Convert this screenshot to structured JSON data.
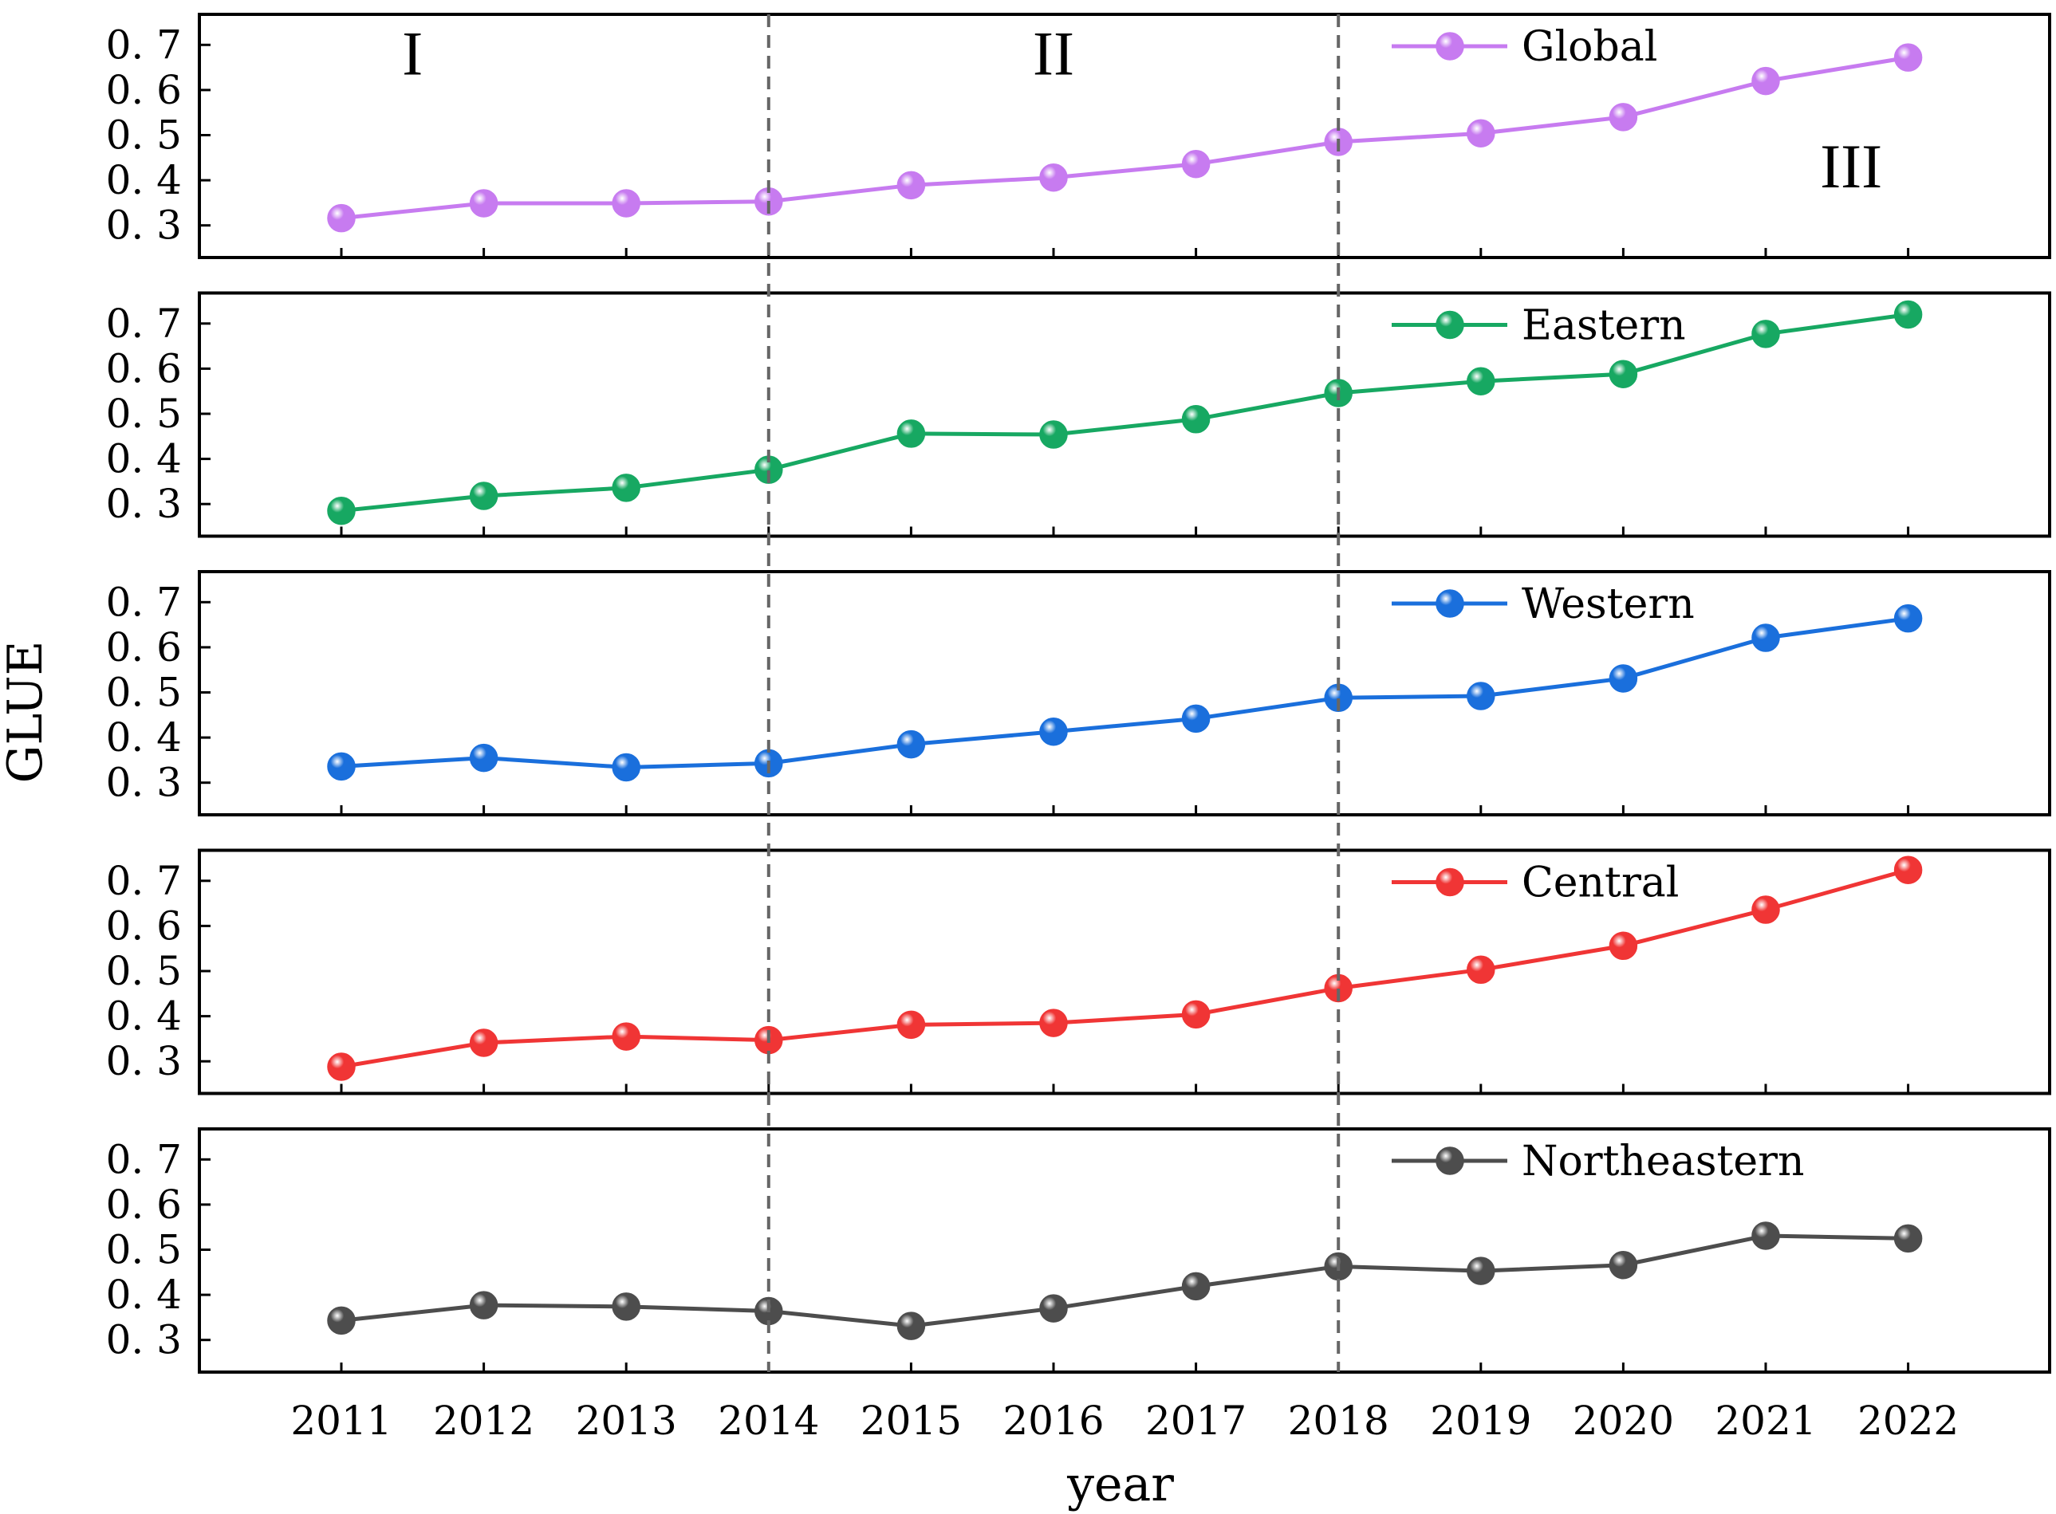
{
  "chart_data": {
    "type": "line",
    "xlabel": "year",
    "ylabel": "GLUE",
    "ylim": [
      0.25,
      0.75
    ],
    "yticks": [
      0.3,
      0.4,
      0.5,
      0.6,
      0.7
    ],
    "ytick_labels": [
      "0. 3",
      "0. 4",
      "0. 5",
      "0. 6",
      "0. 7"
    ],
    "categories": [
      "2011",
      "2012",
      "2013",
      "2014",
      "2015",
      "2016",
      "2017",
      "2018",
      "2019",
      "2020",
      "2021",
      "2022"
    ],
    "divider_years": [
      "2014",
      "2018"
    ],
    "periods": [
      {
        "label": "I",
        "panel": 0,
        "at": 2011.5,
        "y": 0.68
      },
      {
        "label": "II",
        "panel": 0,
        "at": 2016.0,
        "y": 0.68
      },
      {
        "label": "III",
        "panel": 0,
        "at": 2021.6,
        "y": 0.43
      }
    ],
    "series": [
      {
        "name": "Global",
        "color": "#c77bf0",
        "values": [
          0.316,
          0.349,
          0.349,
          0.353,
          0.389,
          0.406,
          0.436,
          0.485,
          0.504,
          0.54,
          0.62,
          0.672
        ]
      },
      {
        "name": "Eastern",
        "color": "#17a862",
        "values": [
          0.285,
          0.318,
          0.336,
          0.376,
          0.456,
          0.454,
          0.488,
          0.546,
          0.572,
          0.588,
          0.677,
          0.72
        ]
      },
      {
        "name": "Western",
        "color": "#1a6fdc",
        "values": [
          0.336,
          0.355,
          0.334,
          0.343,
          0.385,
          0.413,
          0.442,
          0.488,
          0.492,
          0.531,
          0.621,
          0.664
        ]
      },
      {
        "name": "Central",
        "color": "#f03535",
        "values": [
          0.288,
          0.341,
          0.355,
          0.347,
          0.381,
          0.385,
          0.404,
          0.462,
          0.503,
          0.556,
          0.636,
          0.724
        ]
      },
      {
        "name": "Northeastern",
        "color": "#4d4d4d",
        "values": [
          0.343,
          0.377,
          0.374,
          0.364,
          0.331,
          0.37,
          0.419,
          0.463,
          0.453,
          0.466,
          0.531,
          0.525
        ]
      }
    ]
  }
}
